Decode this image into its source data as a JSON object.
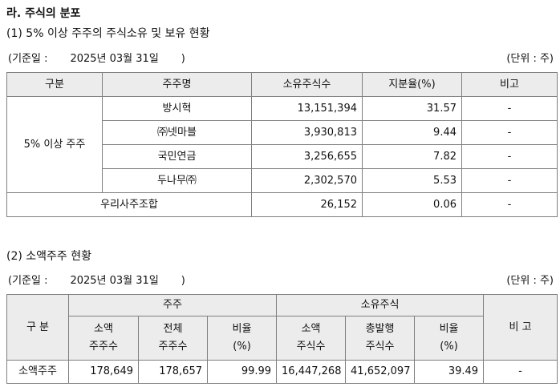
{
  "section_title": "라. 주식의 분포",
  "sub1": "(1) 5% 이상 주주의 주식소유 및 보유 현황",
  "base_label": "(기준일 :",
  "base_date": "2025년 03월 31일",
  "base_close": ")",
  "unit": "(단위 : 주)",
  "t1": {
    "headers": [
      "구분",
      "주주명",
      "소유주식수",
      "지분율(%)",
      "비고"
    ],
    "group_label": "5% 이상 주주",
    "rows": [
      {
        "name": "방시혁",
        "shares": "13,151,394",
        "ratio": "31.57",
        "note": "-"
      },
      {
        "name": "㈜넷마블",
        "shares": "3,930,813",
        "ratio": "9.44",
        "note": "-"
      },
      {
        "name": "국민연금",
        "shares": "3,256,655",
        "ratio": "7.82",
        "note": "-"
      },
      {
        "name": "두나무㈜",
        "shares": "2,302,570",
        "ratio": "5.53",
        "note": "-"
      }
    ],
    "esop": {
      "name": "우리사주조합",
      "shares": "26,152",
      "ratio": "0.06",
      "note": "-"
    }
  },
  "sub2": "(2) 소액주주 현황",
  "t2": {
    "h_category": "구 분",
    "h_holders": "주주",
    "h_shares": "소유주식",
    "h_note": "비 고",
    "sub_h1a": "소액",
    "sub_h1b": "주주수",
    "sub_h2a": "전체",
    "sub_h2b": "주주수",
    "sub_h3a": "비율",
    "sub_h3b": "(%)",
    "sub_h4a": "소액",
    "sub_h4b": "주식수",
    "sub_h5a": "총발행",
    "sub_h5b": "주식수",
    "sub_h6a": "비율",
    "sub_h6b": "(%)",
    "row": {
      "label": "소액주주",
      "minority_holders": "178,649",
      "total_holders": "178,657",
      "holder_ratio": "99.99",
      "minority_shares": "16,447,268",
      "total_shares": "41,652,097",
      "share_ratio": "39.49",
      "note": "-"
    }
  }
}
